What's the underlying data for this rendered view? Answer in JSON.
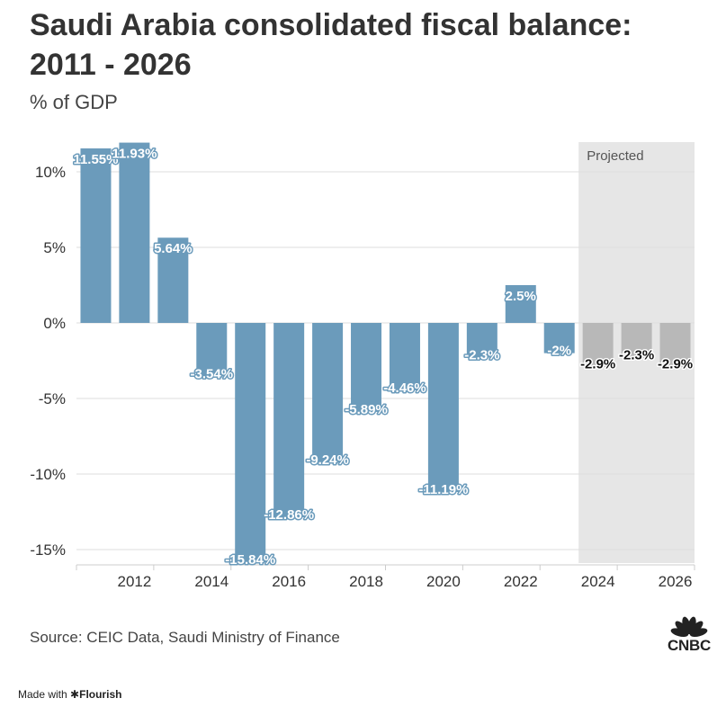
{
  "title": "Saudi Arabia consolidated fiscal balance: 2011 - 2026",
  "subtitle": "% of GDP",
  "source": "Source: CEIC Data, Saudi Ministry of Finance",
  "made_with_prefix": "Made with",
  "made_with_brand": "Flourish",
  "logo_text": "CNBC",
  "colors": {
    "actual": "#6b9bbb",
    "projected": "#b8b8b8",
    "projection_band": "#e6e6e6"
  },
  "chart_data": {
    "type": "bar",
    "title": "Saudi Arabia consolidated fiscal balance: 2011 - 2026",
    "ylabel": "% of GDP",
    "xlabel": "",
    "ylim": [
      -16,
      12
    ],
    "yticks": [
      -15,
      -10,
      -5,
      0,
      5,
      10
    ],
    "ytick_labels": [
      "-15%",
      "-10%",
      "-5%",
      "0%",
      "5%",
      "10%"
    ],
    "xtick_labels": [
      "2012",
      "2014",
      "2016",
      "2018",
      "2020",
      "2022",
      "2024",
      "2026"
    ],
    "grid": true,
    "categories": [
      "2011",
      "2012",
      "2013",
      "2014",
      "2015",
      "2016",
      "2017",
      "2018",
      "2019",
      "2020",
      "2021",
      "2022",
      "2023",
      "2024",
      "2025",
      "2026"
    ],
    "values": [
      11.55,
      11.93,
      5.64,
      -3.54,
      -15.84,
      -12.86,
      -9.24,
      -5.89,
      -4.46,
      -11.19,
      -2.3,
      2.5,
      -2,
      -2.9,
      -2.3,
      -2.9
    ],
    "value_labels": [
      "11.55%",
      "11.93%",
      "5.64%",
      "-3.54%",
      "-15.84%",
      "-12.86%",
      "-9.24%",
      "-5.89%",
      "-4.46%",
      "-11.19%",
      "-2.3%",
      "2.5%",
      "-2%",
      "-2.9%",
      "-2.3%",
      "-2.9%"
    ],
    "projected": [
      false,
      false,
      false,
      false,
      false,
      false,
      false,
      false,
      false,
      false,
      false,
      false,
      false,
      true,
      true,
      true
    ],
    "annotation": "Projected"
  }
}
